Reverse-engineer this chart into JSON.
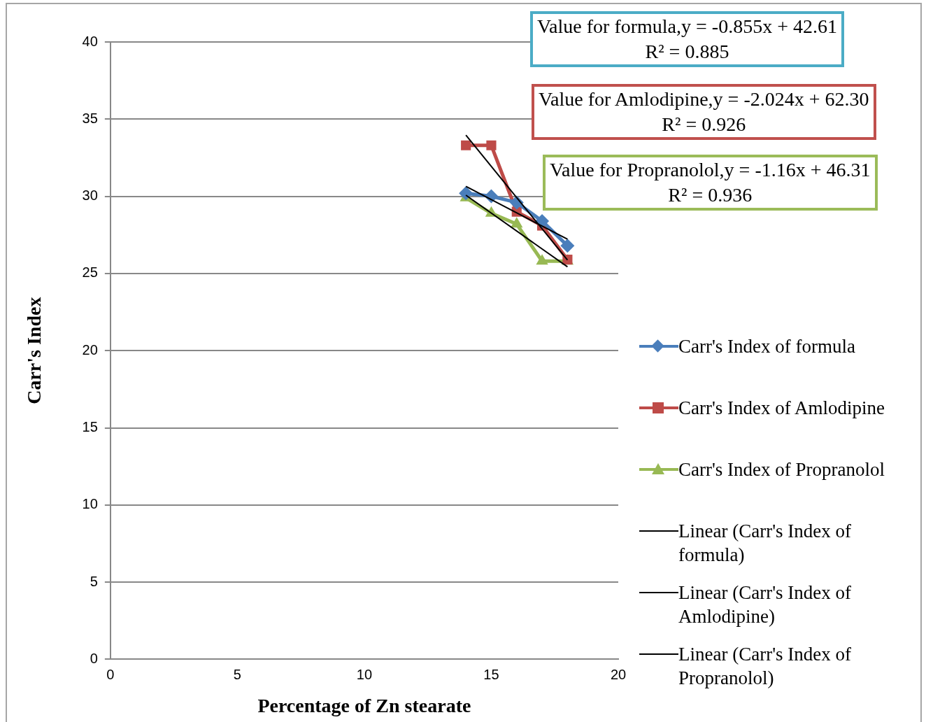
{
  "chart_data": {
    "type": "line",
    "xlabel": "Percentage of Zn stearate",
    "ylabel": "Carr's Index",
    "xlim": [
      0,
      20
    ],
    "xticks": [
      0,
      5,
      10,
      15,
      20
    ],
    "ylim": [
      0,
      40
    ],
    "yticks": [
      0,
      5,
      10,
      15,
      20,
      25,
      30,
      35,
      40
    ],
    "grid": "y",
    "legend": "right",
    "line_style": "solid",
    "series": [
      {
        "name": "Carr's Index of formula",
        "color": "#4a7ebb",
        "marker": "diamond",
        "x": [
          14,
          15,
          16,
          17,
          18
        ],
        "values": [
          30.2,
          30.0,
          29.6,
          28.4,
          26.8
        ]
      },
      {
        "name": "Carr's Index of Amlodipine",
        "color": "#be4b48",
        "marker": "square",
        "x": [
          14,
          15,
          16,
          17,
          18
        ],
        "values": [
          33.3,
          33.3,
          29.0,
          28.1,
          25.9
        ]
      },
      {
        "name": "Carr's Index of Propranolol",
        "color": "#98b954",
        "marker": "triangle",
        "x": [
          14,
          15,
          16,
          17,
          18
        ],
        "values": [
          29.9,
          28.9,
          28.2,
          25.8,
          25.8
        ]
      },
      {
        "name": "Linear (Carr's Index of formula)",
        "color": "#000000",
        "marker": "none",
        "x": [
          14,
          18
        ],
        "values": [
          30.64,
          27.22
        ]
      },
      {
        "name": "Linear (Carr's Index of Amlodipine)",
        "color": "#000000",
        "marker": "none",
        "x": [
          14,
          18
        ],
        "values": [
          33.96,
          25.87
        ]
      },
      {
        "name": "Linear (Carr's Index of Propranolol)",
        "color": "#000000",
        "marker": "none",
        "x": [
          14,
          18
        ],
        "values": [
          30.07,
          25.43
        ]
      }
    ],
    "annotations": [
      "Value for formula,y = -0.855x + 42.61\nR² = 0.885",
      "Value for Amlodipine,y = -2.024x + 62.30\nR² = 0.926",
      "Value for Propranolol,y = -1.16x + 46.31\nR² = 0.936"
    ]
  }
}
